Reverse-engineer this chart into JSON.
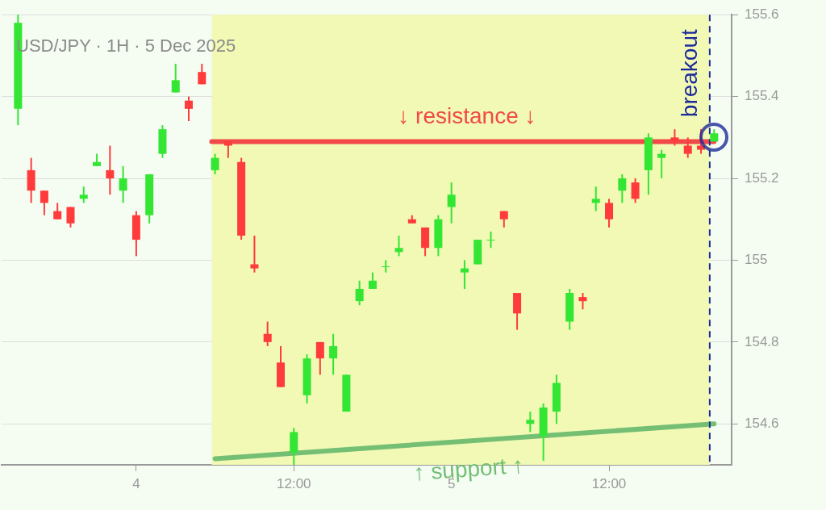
{
  "chart_data": {
    "type": "candlestick",
    "title": "USD/JPY · 1H · 5 Dec 2025",
    "x": [
      "2025-12-03T15:00",
      "2025-12-03T16:00",
      "2025-12-03T17:00",
      "2025-12-03T18:00",
      "2025-12-03T19:00",
      "2025-12-03T20:00",
      "2025-12-03T21:00",
      "2025-12-03T22:00",
      "2025-12-03T23:00",
      "2025-12-04T00:00",
      "2025-12-04T01:00",
      "2025-12-04T02:00",
      "2025-12-04T03:00",
      "2025-12-04T04:00",
      "2025-12-04T05:00",
      "2025-12-04T06:00",
      "2025-12-04T07:00",
      "2025-12-04T08:00",
      "2025-12-04T09:00",
      "2025-12-04T10:00",
      "2025-12-04T11:00",
      "2025-12-04T12:00",
      "2025-12-04T13:00",
      "2025-12-04T14:00",
      "2025-12-04T15:00",
      "2025-12-04T16:00",
      "2025-12-04T17:00",
      "2025-12-04T18:00",
      "2025-12-04T19:00",
      "2025-12-04T20:00",
      "2025-12-04T21:00",
      "2025-12-04T22:00",
      "2025-12-04T23:00",
      "2025-12-05T00:00",
      "2025-12-05T01:00",
      "2025-12-05T02:00",
      "2025-12-05T03:00",
      "2025-12-05T04:00",
      "2025-12-05T05:00",
      "2025-12-05T06:00",
      "2025-12-05T07:00",
      "2025-12-05T08:00",
      "2025-12-05T09:00",
      "2025-12-05T10:00",
      "2025-12-05T11:00",
      "2025-12-05T12:00",
      "2025-12-05T13:00",
      "2025-12-05T14:00",
      "2025-12-05T15:00",
      "2025-12-05T16:00",
      "2025-12-05T17:00",
      "2025-12-05T18:00",
      "2025-12-05T19:00",
      "2025-12-05T20:00"
    ],
    "ohlc": [
      [
        155.37,
        155.6,
        155.33,
        155.58
      ],
      [
        155.22,
        155.25,
        155.14,
        155.17
      ],
      [
        155.17,
        155.17,
        155.11,
        155.14
      ],
      [
        155.12,
        155.14,
        155.1,
        155.1
      ],
      [
        155.13,
        155.13,
        155.08,
        155.09
      ],
      [
        155.15,
        155.18,
        155.14,
        155.16
      ],
      [
        155.23,
        155.26,
        155.23,
        155.24
      ],
      [
        155.22,
        155.28,
        155.16,
        155.2
      ],
      [
        155.17,
        155.23,
        155.14,
        155.2
      ],
      [
        155.11,
        155.12,
        155.01,
        155.05
      ],
      [
        155.11,
        155.21,
        155.09,
        155.21
      ],
      [
        155.26,
        155.33,
        155.25,
        155.32
      ],
      [
        155.41,
        155.48,
        155.41,
        155.44
      ],
      [
        155.39,
        155.4,
        155.34,
        155.37
      ],
      [
        155.46,
        155.48,
        155.43,
        155.43
      ],
      [
        155.22,
        155.26,
        155.21,
        155.25
      ],
      [
        155.29,
        155.29,
        155.25,
        155.28
      ],
      [
        155.24,
        155.25,
        155.05,
        155.06
      ],
      [
        154.99,
        155.06,
        154.97,
        154.98
      ],
      [
        154.82,
        154.85,
        154.79,
        154.8
      ],
      [
        154.75,
        154.79,
        154.69,
        154.69
      ],
      [
        154.53,
        154.59,
        154.5,
        154.58
      ],
      [
        154.67,
        154.77,
        154.65,
        154.76
      ],
      [
        154.8,
        154.8,
        154.72,
        154.76
      ],
      [
        154.76,
        154.82,
        154.72,
        154.79
      ],
      [
        154.63,
        154.72,
        154.63,
        154.72
      ],
      [
        154.9,
        154.95,
        154.89,
        154.93
      ],
      [
        154.93,
        154.97,
        154.93,
        154.95
      ],
      [
        154.985,
        155.0,
        154.97,
        154.985
      ],
      [
        155.02,
        155.06,
        155.01,
        155.03
      ],
      [
        155.1,
        155.11,
        155.09,
        155.09
      ],
      [
        155.08,
        155.08,
        155.01,
        155.03
      ],
      [
        155.03,
        155.11,
        155.01,
        155.1
      ],
      [
        155.13,
        155.19,
        155.09,
        155.16
      ],
      [
        154.97,
        155.0,
        154.93,
        154.98
      ],
      [
        154.99,
        155.05,
        154.99,
        155.05
      ],
      [
        155.05,
        155.07,
        155.03,
        155.05
      ],
      [
        155.12,
        155.12,
        155.08,
        155.1
      ],
      [
        154.92,
        154.92,
        154.83,
        154.87
      ],
      [
        154.6,
        154.63,
        154.58,
        154.61
      ],
      [
        154.57,
        154.65,
        154.51,
        154.64
      ],
      [
        154.63,
        154.72,
        154.6,
        154.7
      ],
      [
        154.85,
        154.93,
        154.83,
        154.92
      ],
      [
        154.91,
        154.92,
        154.88,
        154.9
      ],
      [
        155.14,
        155.18,
        155.12,
        155.15
      ],
      [
        155.14,
        155.15,
        155.08,
        155.1
      ],
      [
        155.17,
        155.21,
        155.14,
        155.2
      ],
      [
        155.19,
        155.2,
        155.14,
        155.15
      ],
      [
        155.22,
        155.31,
        155.16,
        155.3
      ],
      [
        155.25,
        155.27,
        155.2,
        155.26
      ],
      [
        155.3,
        155.32,
        155.28,
        155.29
      ],
      [
        155.28,
        155.3,
        155.25,
        155.26
      ],
      [
        155.28,
        155.32,
        155.26,
        155.27
      ],
      [
        155.29,
        155.32,
        155.29,
        155.31
      ]
    ],
    "colors": [
      "#33e633",
      "#ff3b3b",
      "#ff3b3b",
      "#ff3b3b",
      "#ff3b3b",
      "#33e633",
      "#33e633",
      "#ff3b3b",
      "#33e633",
      "#ff3b3b",
      "#33e633",
      "#33e633",
      "#33e633",
      "#ff3b3b",
      "#ff3b3b",
      "#33e633",
      "#ff3b3b",
      "#ff3b3b",
      "#ff3b3b",
      "#ff3b3b",
      "#ff3b3b",
      "#33e633",
      "#33e633",
      "#ff3b3b",
      "#33e633",
      "#33e633",
      "#33e633",
      "#33e633",
      "#33e633",
      "#33e633",
      "#ff3b3b",
      "#ff3b3b",
      "#33e633",
      "#33e633",
      "#33e633",
      "#33e633",
      "#33e633",
      "#ff3b3b",
      "#ff3b3b",
      "#33e633",
      "#33e633",
      "#33e633",
      "#33e633",
      "#ff3b3b",
      "#33e633",
      "#ff3b3b",
      "#33e633",
      "#ff3b3b",
      "#33e633",
      "#33e633",
      "#ff3b3b",
      "#ff3b3b",
      "#ff3b3b",
      "#33e633"
    ],
    "series": [
      {
        "type": "line",
        "x": [
          "2025-12-04T05:45",
          "2025-12-05T20:00"
        ],
        "values": [
          155.29,
          155.29
        ],
        "color": "#f24848"
      },
      {
        "type": "line",
        "x": [
          "2025-12-04T06:00",
          "2025-12-05T20:00"
        ],
        "values": [
          154.515,
          154.6
        ],
        "color": "#74bf74"
      }
    ],
    "ref_lines": [
      {
        "axis": "x",
        "value": "2025-12-05T19:40",
        "label": "breakout",
        "color": "#1c2a9a",
        "line_style": "dashed"
      }
    ],
    "bands": [
      {
        "axis": "x",
        "from": "2025-12-04T05:45",
        "to": "2025-12-05T19:40",
        "color": "#f1f9b4"
      }
    ],
    "annotations": [
      "↓ resistance ↓",
      "↑ support ↑"
    ],
    "xlim": [
      "2025-12-03T13:45",
      "2025-12-05T21:20"
    ],
    "xticks": [
      {
        "value": "2025-12-04T00:00",
        "label": "4"
      },
      {
        "value": "2025-12-04T12:00",
        "label": "12:00"
      },
      {
        "value": "2025-12-05T00:00",
        "label": "5"
      },
      {
        "value": "2025-12-05T12:00",
        "label": "12:00"
      }
    ],
    "ylim": [
      154.5,
      155.6
    ],
    "yticks": [
      154.6,
      154.8,
      155.0,
      155.2,
      155.4,
      155.6
    ],
    "grid": "y"
  }
}
